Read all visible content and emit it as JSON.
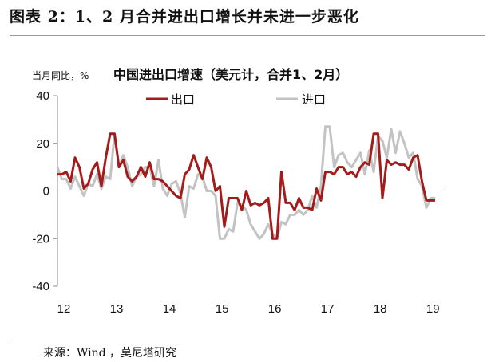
{
  "figure": {
    "title": "图表 2：1、2 月合并进出口增长并未进一步恶化",
    "source": "来源：Wind ，莫尼塔研究"
  },
  "chart_data": {
    "type": "line",
    "title": "中国进出口增速（美元计，合并1、2月）",
    "unit_label": "当月同比，%",
    "ylim": [
      -40,
      40
    ],
    "yticks": [
      40,
      20,
      0,
      -20,
      -40
    ],
    "xlim": [
      2012.0,
      2019.33
    ],
    "xticks": [
      {
        "label": "12",
        "value": 2012
      },
      {
        "label": "13",
        "value": 2013
      },
      {
        "label": "14",
        "value": 2014
      },
      {
        "label": "15",
        "value": 2015
      },
      {
        "label": "16",
        "value": 2016
      },
      {
        "label": "17",
        "value": 2017
      },
      {
        "label": "18",
        "value": 2018
      },
      {
        "label": "19",
        "value": 2019
      }
    ],
    "legend_position": "top-center",
    "series": [
      {
        "name": "出口",
        "color": "#a31b1b",
        "start": 2012.0,
        "step": 0.0833,
        "values": [
          7,
          7,
          8,
          4,
          14,
          10,
          1,
          3,
          9,
          12,
          2,
          14,
          24,
          24,
          10,
          13,
          6,
          4,
          6,
          10,
          6,
          12,
          5,
          5,
          4,
          2,
          0,
          -2,
          -3,
          7,
          9,
          15,
          10,
          5,
          14,
          10,
          0,
          2,
          -15,
          -3,
          -3,
          -3,
          -8,
          0,
          -6,
          -5,
          -6,
          -5,
          -3,
          -20,
          -20,
          8,
          -5,
          -5,
          -8,
          -3,
          -7,
          -7,
          -8,
          1,
          -4,
          8,
          8,
          7,
          10,
          10,
          7,
          8,
          6,
          10,
          12,
          11,
          24,
          24,
          -3,
          13,
          11,
          12,
          11,
          11,
          9,
          14,
          15,
          4,
          -4,
          -4,
          -4
        ],
        "visible_from_last": 2
      },
      {
        "name": "进口",
        "color": "#c3c3c3",
        "start": 2012.0,
        "step": 0.0833,
        "values": [
          10,
          5,
          5,
          1,
          6,
          2,
          -2,
          3,
          2,
          7,
          1,
          6,
          5,
          24,
          10,
          15,
          10,
          2,
          6,
          7,
          10,
          10,
          2,
          13,
          1,
          -2,
          3,
          4,
          -1,
          -11,
          2,
          1,
          7,
          6,
          0,
          0,
          -2,
          -20,
          -20,
          -16,
          -17,
          -5,
          -6,
          -8,
          -14,
          -17,
          -20,
          -18,
          -14,
          -18,
          -20,
          -13,
          -14,
          -10,
          -10,
          -8,
          -10,
          -8,
          -2,
          -7,
          2,
          27,
          27,
          10,
          15,
          16,
          12,
          10,
          13,
          16,
          7,
          17,
          8,
          23,
          21,
          14,
          26,
          16,
          25,
          20,
          14,
          16,
          5,
          2,
          -7,
          -3,
          -3
        ]
      }
    ]
  }
}
